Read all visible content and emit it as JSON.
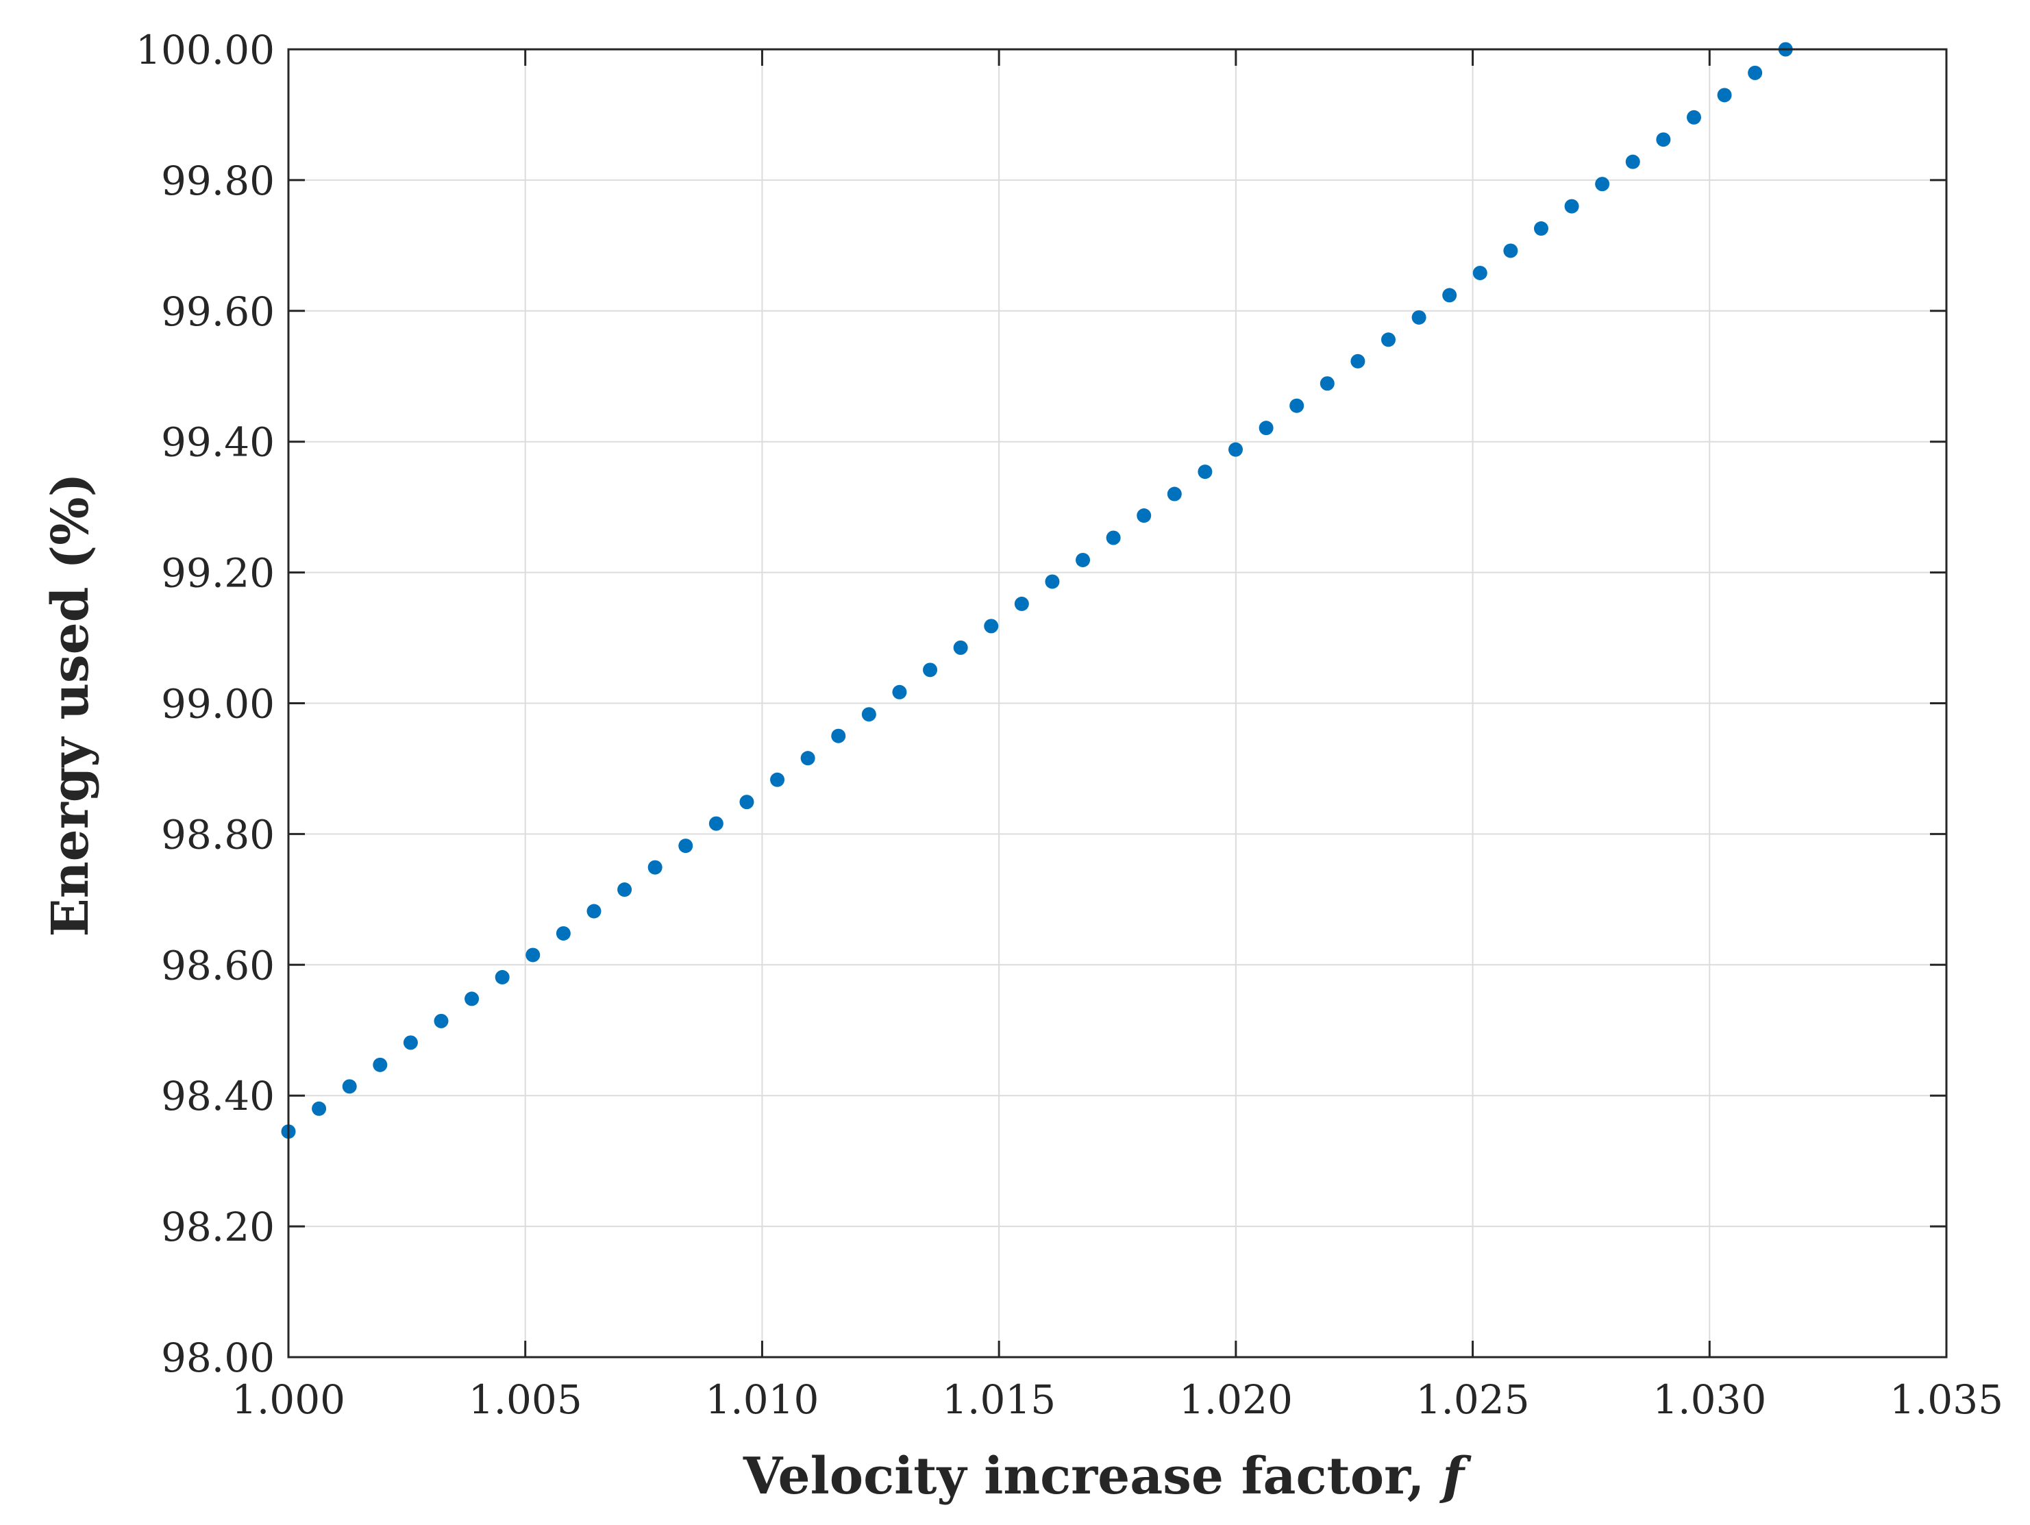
{
  "chart_data": {
    "type": "scatter",
    "xlabel": "Velocity increase factor, ",
    "xlabel_symbol": "f",
    "ylabel": "Energy used (%)",
    "xlim": [
      1.0,
      1.035
    ],
    "ylim": [
      98.0,
      100.0
    ],
    "x_ticks": [
      "1.000",
      "1.005",
      "1.010",
      "1.015",
      "1.020",
      "1.025",
      "1.030",
      "1.035"
    ],
    "y_ticks": [
      "98.00",
      "98.20",
      "98.40",
      "98.60",
      "98.80",
      "99.00",
      "99.20",
      "99.40",
      "99.60",
      "99.80",
      "100.00"
    ],
    "grid": true,
    "marker_color": "#0072BD",
    "x": [
      1.0,
      1.000645,
      1.00129,
      1.001935,
      1.00258,
      1.003225,
      1.00387,
      1.004515,
      1.00516,
      1.005805,
      1.00645,
      1.007095,
      1.00774,
      1.008385,
      1.00903,
      1.009675,
      1.01032,
      1.010965,
      1.01161,
      1.012255,
      1.0129,
      1.013545,
      1.01419,
      1.014835,
      1.01548,
      1.016125,
      1.01677,
      1.017415,
      1.01806,
      1.018705,
      1.01935,
      1.019995,
      1.02064,
      1.021285,
      1.02193,
      1.022575,
      1.02322,
      1.023865,
      1.02451,
      1.025155,
      1.0258,
      1.026445,
      1.02709,
      1.027735,
      1.02838,
      1.029025,
      1.02967,
      1.030315,
      1.03096,
      1.031605
    ],
    "y": [
      98.345,
      98.38,
      98.414,
      98.447,
      98.481,
      98.514,
      98.548,
      98.581,
      98.615,
      98.648,
      98.682,
      98.715,
      98.749,
      98.782,
      98.816,
      98.849,
      98.883,
      98.916,
      98.95,
      98.983,
      99.017,
      99.051,
      99.085,
      99.118,
      99.152,
      99.186,
      99.219,
      99.253,
      99.287,
      99.32,
      99.354,
      99.388,
      99.421,
      99.455,
      99.489,
      99.523,
      99.556,
      99.59,
      99.624,
      99.658,
      99.692,
      99.726,
      99.76,
      99.794,
      99.828,
      99.862,
      99.896,
      99.93,
      99.964,
      100.0
    ]
  }
}
